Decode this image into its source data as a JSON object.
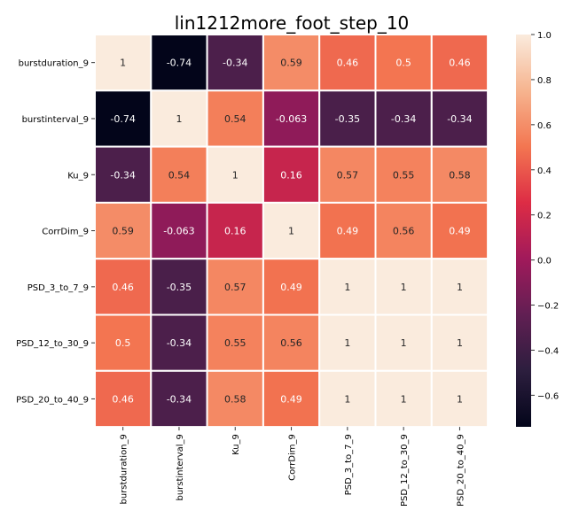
{
  "chart_data": {
    "type": "heatmap",
    "title": "lin1212more_foot_step_10",
    "xlabel": "",
    "ylabel": "",
    "row_labels": [
      "burstduration_9",
      "burstinterval_9",
      "Ku_9",
      "CorrDim_9",
      "PSD_3_to_7_9",
      "PSD_12_to_30_9",
      "PSD_20_to_40_9"
    ],
    "col_labels": [
      "burstduration_9",
      "burstinterval_9",
      "Ku_9",
      "CorrDim_9",
      "PSD_3_to_7_9",
      "PSD_12_to_30_9",
      "PSD_20_to_40_9"
    ],
    "values": [
      [
        1,
        -0.74,
        -0.34,
        0.59,
        0.46,
        0.5,
        0.46
      ],
      [
        -0.74,
        1,
        0.54,
        -0.063,
        -0.35,
        -0.34,
        -0.34
      ],
      [
        -0.34,
        0.54,
        1,
        0.16,
        0.57,
        0.55,
        0.58
      ],
      [
        0.59,
        -0.063,
        0.16,
        1,
        0.49,
        0.56,
        0.49
      ],
      [
        0.46,
        -0.35,
        0.57,
        0.49,
        1,
        1,
        1
      ],
      [
        0.5,
        -0.34,
        0.55,
        0.56,
        1,
        1,
        1
      ],
      [
        0.46,
        -0.34,
        0.58,
        0.49,
        1,
        1,
        1
      ]
    ],
    "cell_labels": [
      [
        "1",
        "-0.74",
        "-0.34",
        "0.59",
        "0.46",
        "0.5",
        "0.46"
      ],
      [
        "-0.74",
        "1",
        "0.54",
        "-0.063",
        "-0.35",
        "-0.34",
        "-0.34"
      ],
      [
        "-0.34",
        "0.54",
        "1",
        "0.16",
        "0.57",
        "0.55",
        "0.58"
      ],
      [
        "0.59",
        "-0.063",
        "0.16",
        "1",
        "0.49",
        "0.56",
        "0.49"
      ],
      [
        "0.46",
        "-0.35",
        "0.57",
        "0.49",
        "1",
        "1",
        "1"
      ],
      [
        "0.5",
        "-0.34",
        "0.55",
        "0.56",
        "1",
        "1",
        "1"
      ],
      [
        "0.46",
        "-0.34",
        "0.58",
        "0.49",
        "1",
        "1",
        "1"
      ]
    ],
    "colorbar": {
      "range": [
        -0.74,
        1.0
      ],
      "ticks": [
        -0.6,
        -0.4,
        -0.2,
        0.0,
        0.2,
        0.4,
        0.6,
        0.8,
        1.0
      ],
      "tick_labels": [
        "−0.6",
        "−0.4",
        "−0.2",
        "0.0",
        "0.2",
        "0.4",
        "0.6",
        "0.8",
        "1.0"
      ]
    },
    "colormap": "rocket",
    "colormap_stops": [
      "#03051a",
      "#2c1e3e",
      "#611f53",
      "#a11a5b",
      "#dd2c45",
      "#f37651",
      "#f6b48f",
      "#faebdd"
    ],
    "annotation_colors": {
      "light_text": "#ffffff",
      "dark_text": "#262626"
    },
    "grid_line_color": "#ffffff"
  }
}
